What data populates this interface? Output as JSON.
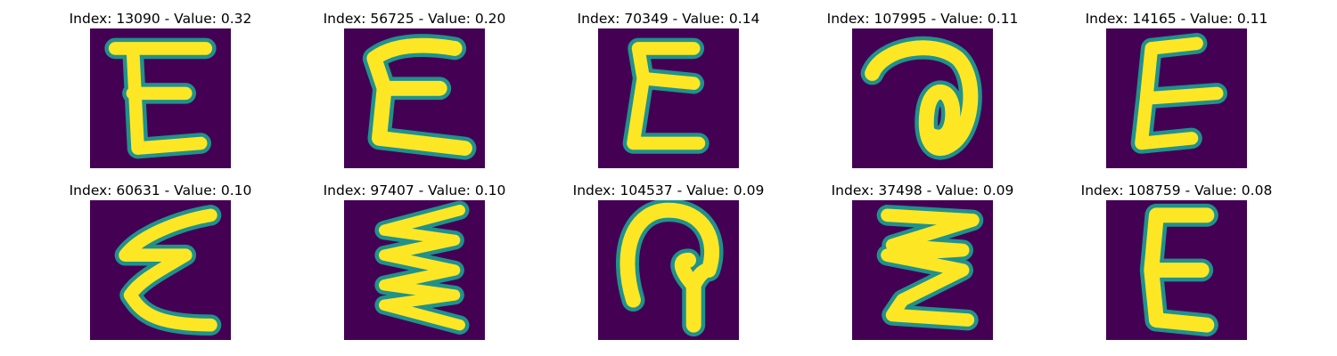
{
  "panels": [
    {
      "title": "Index: 13090 - Value: 0.32",
      "glyph": "E-shape digit image"
    },
    {
      "title": "Index: 56725 - Value: 0.20",
      "glyph": "E-shape digit image"
    },
    {
      "title": "Index: 70349 - Value: 0.14",
      "glyph": "E-shape digit image"
    },
    {
      "title": "Index: 107995 - Value: 0.11",
      "glyph": "loop digit image"
    },
    {
      "title": "Index: 14165 - Value: 0.11",
      "glyph": "E-shape digit image"
    },
    {
      "title": "Index: 60631 - Value: 0.10",
      "glyph": "E-shape digit image"
    },
    {
      "title": "Index: 97407 - Value: 0.10",
      "glyph": "E-shape digit image"
    },
    {
      "title": "Index: 104537 - Value: 0.09",
      "glyph": "hook digit image"
    },
    {
      "title": "Index: 37498 - Value: 0.09",
      "glyph": "E-shape digit image"
    },
    {
      "title": "Index: 108759 - Value: 0.08",
      "glyph": "E-shape digit image"
    }
  ],
  "colors": {
    "background": "#440154",
    "stroke_core": "#fde725",
    "stroke_edge": "#21918c"
  }
}
